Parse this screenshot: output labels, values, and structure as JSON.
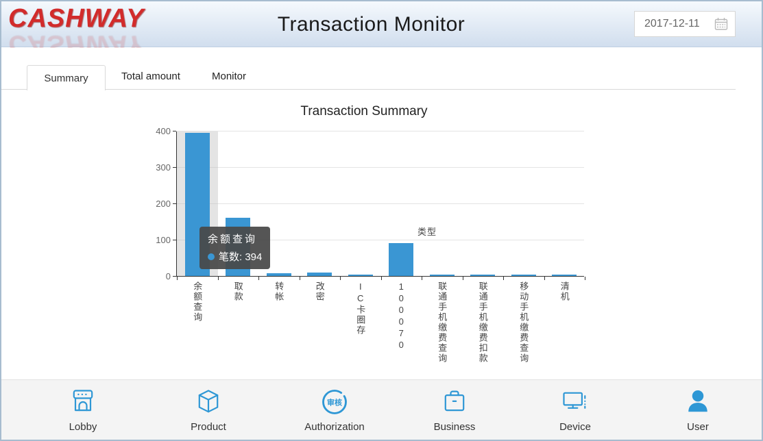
{
  "header": {
    "logo_text": "CASHWAY",
    "title": "Transaction Monitor",
    "date_value": "2017-12-11"
  },
  "tabs": [
    {
      "label": "Summary",
      "active": true
    },
    {
      "label": "Total amount",
      "active": false
    },
    {
      "label": "Monitor",
      "active": false
    }
  ],
  "chart_data": {
    "type": "bar",
    "title": "Transaction Summary",
    "categories": [
      "余额查询",
      "取款",
      "转帐",
      "改密",
      "IC卡圈存",
      "100070",
      "联通手机缴费查询",
      "联通手机缴费扣款",
      "移动手机缴费查询",
      "清机"
    ],
    "values": [
      394,
      160,
      8,
      10,
      3,
      90,
      3,
      3,
      3,
      2
    ],
    "series_name": "笔数",
    "xlabel": "类型",
    "ylabel": "",
    "ylim": [
      0,
      400
    ],
    "ytick_step": 100,
    "grid": true,
    "legend": "none",
    "bar_color": "#3a96d3",
    "highlighted_index": 0,
    "tooltip": {
      "title": "余额查询",
      "line2": "笔数: 394"
    }
  },
  "nav": {
    "items": [
      {
        "label": "Lobby"
      },
      {
        "label": "Product"
      },
      {
        "label": "Authorization",
        "seal_text": "审核"
      },
      {
        "label": "Business"
      },
      {
        "label": "Device"
      },
      {
        "label": "User"
      }
    ]
  },
  "colors": {
    "accent_blue": "#2e97d5",
    "logo_red": "#d22b2b"
  }
}
